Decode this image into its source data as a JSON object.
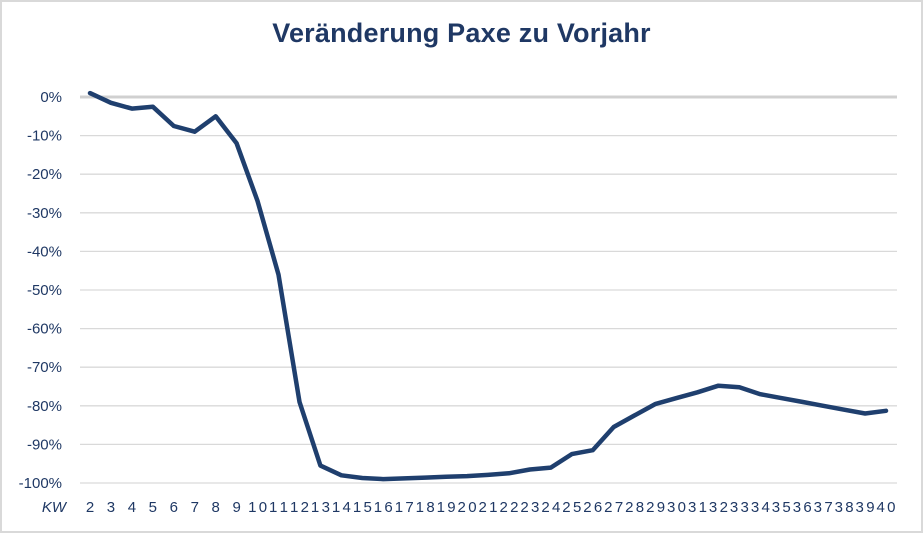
{
  "chart_data": {
    "type": "line",
    "title": "Veränderung Paxe zu Vorjahr",
    "xlabel": "KW",
    "ylabel": "",
    "x": [
      2,
      3,
      4,
      5,
      6,
      7,
      8,
      9,
      10,
      11,
      12,
      13,
      14,
      15,
      16,
      17,
      18,
      19,
      20,
      21,
      22,
      23,
      24,
      25,
      26,
      27,
      28,
      29,
      30,
      31,
      32,
      33,
      34,
      35,
      36,
      37,
      38,
      39,
      40
    ],
    "series": [
      {
        "name": "Veränderung Paxe zu Vorjahr",
        "color": "#1f3f6e",
        "values": [
          1,
          -1.5,
          -3,
          -2.5,
          -7.5,
          -9,
          -5,
          -12,
          -27,
          -46,
          -79,
          -95.5,
          -98,
          -98.7,
          -99,
          -98.8,
          -98.6,
          -98.4,
          -98.2,
          -97.9,
          -97.5,
          -96.5,
          -96,
          -92.5,
          -91.5,
          -85.5,
          -82.5,
          -79.5,
          -78,
          -76.5,
          -74.8,
          -75.2,
          -77,
          -78,
          -79,
          -80,
          -81,
          -82,
          -81.3
        ]
      }
    ],
    "yticks": [
      "0%",
      "-10%",
      "-20%",
      "-30%",
      "-40%",
      "-50%",
      "-60%",
      "-70%",
      "-80%",
      "-90%",
      "-100%"
    ],
    "ylim": [
      -100,
      0
    ],
    "grid": true,
    "legend": "none"
  },
  "colors": {
    "title": "#1f3864",
    "line": "#1f3f6e",
    "grid": "#d9d9d9",
    "zero_line": "#d0d0d0",
    "axis_text": "#1f3864"
  }
}
